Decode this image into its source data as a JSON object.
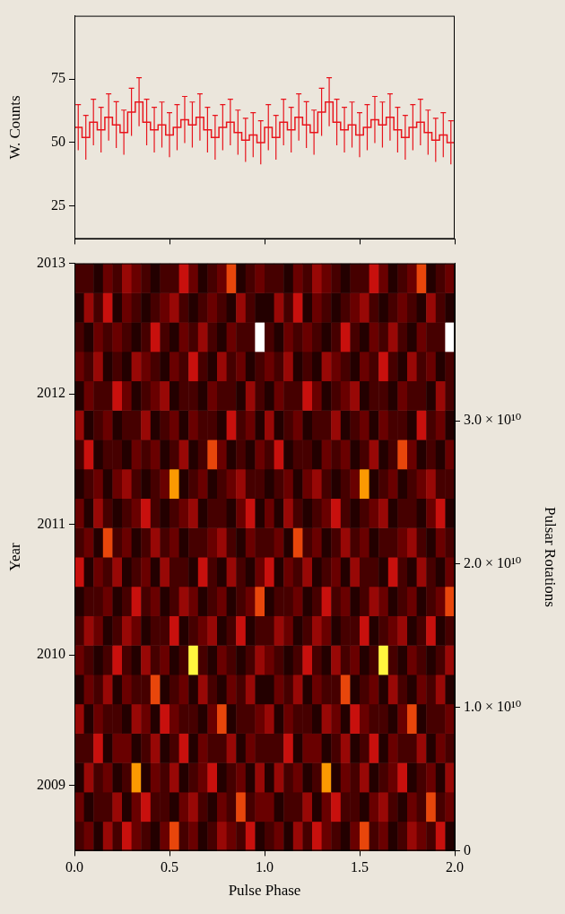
{
  "chart_data": [
    {
      "type": "histogram",
      "y_label": "W. Counts",
      "color": "#e8141c",
      "tick_labels": "y",
      "bins": [
        0,
        0.04,
        0.08,
        0.12,
        0.16,
        0.2,
        0.24,
        0.28,
        0.32,
        0.36,
        0.4,
        0.44,
        0.48,
        0.52,
        0.56,
        0.6,
        0.64,
        0.68,
        0.72,
        0.76,
        0.8,
        0.84,
        0.88,
        0.92,
        0.96,
        1,
        1.04,
        1.08,
        1.12,
        1.16,
        1.2,
        1.24,
        1.28,
        1.32,
        1.36,
        1.4,
        1.44,
        1.48,
        1.52,
        1.56,
        1.6,
        1.64,
        1.68,
        1.72,
        1.76,
        1.8,
        1.84,
        1.88,
        1.92,
        1.96,
        2
      ],
      "values": [
        56,
        52,
        58,
        55,
        60,
        57,
        54,
        62,
        66,
        58,
        55,
        57,
        53,
        56,
        59,
        57,
        60,
        55,
        52,
        56,
        58,
        54,
        51,
        53,
        50,
        56,
        52,
        58,
        55,
        60,
        57,
        54,
        62,
        66,
        58,
        55,
        57,
        53,
        56,
        59,
        57,
        60,
        55,
        52,
        56,
        58,
        54,
        51,
        53,
        50
      ],
      "errors": [
        9.0,
        8.7,
        9.1,
        8.9,
        9.2,
        9.1,
        8.8,
        9.4,
        9.6,
        9.1,
        8.9,
        9.0,
        8.8,
        9.0,
        9.2,
        9.0,
        9.2,
        8.9,
        8.7,
        9.0,
        9.1,
        8.8,
        8.6,
        8.8,
        8.6,
        9.0,
        8.7,
        9.1,
        8.9,
        9.2,
        9.1,
        8.8,
        9.4,
        9.6,
        9.1,
        8.9,
        9.0,
        8.8,
        9.0,
        9.2,
        9.0,
        9.2,
        8.9,
        8.7,
        9.0,
        9.1,
        8.8,
        8.6,
        8.8,
        8.6
      ],
      "xlim": [
        0,
        2
      ],
      "xticks": [
        {
          "value": 0,
          "label": "0.0"
        },
        0.5,
        {
          "value": 1,
          "label": "1.0"
        },
        1.5,
        {
          "value": 2,
          "label": "2.0"
        }
      ],
      "ylim": [
        12,
        100
      ],
      "yticks": [
        25,
        50,
        75
      ]
    },
    {
      "type": "heatmap",
      "x_label": "Pulse Phase",
      "y_label": "Year",
      "y2_label": "Pulsar Rotations",
      "xlim": [
        0,
        2
      ],
      "xticks": [
        {
          "value": 0,
          "label": "0.0"
        },
        0.5,
        {
          "value": 1,
          "label": "1.0"
        },
        1.5,
        {
          "value": 2,
          "label": "2.0"
        }
      ],
      "ylim": [
        2008.5,
        2013
      ],
      "yticks": [
        2009,
        2010,
        2011,
        2012,
        2013
      ],
      "y2lim": [
        0,
        41000000000
      ],
      "y2ticks": [
        0,
        {
          "value": 10000000000,
          "label": "1.0 × 10¹⁰"
        },
        {
          "value": 20000000000,
          "label": "2.0 × 10¹⁰"
        },
        {
          "value": 30000000000,
          "label": "3.0 × 10¹⁰"
        }
      ],
      "zlim": [
        0,
        9
      ],
      "z": [
        [
          2,
          3,
          1,
          4,
          2,
          5,
          3,
          2,
          1,
          3,
          6,
          2,
          3,
          1,
          2,
          4,
          3,
          2,
          5,
          1,
          2,
          3,
          1,
          4,
          2,
          5,
          3,
          2,
          1,
          3,
          6,
          2,
          3,
          1,
          2,
          4,
          3,
          2,
          5,
          1
        ],
        [
          3,
          1,
          2,
          2,
          4,
          1,
          3,
          5,
          2,
          2,
          1,
          3,
          4,
          2,
          1,
          3,
          2,
          6,
          2,
          3,
          3,
          1,
          2,
          2,
          4,
          1,
          3,
          5,
          2,
          2,
          1,
          3,
          4,
          2,
          1,
          3,
          2,
          6,
          2,
          3
        ],
        [
          1,
          4,
          2,
          3,
          1,
          2,
          7,
          1,
          3,
          2,
          4,
          1,
          2,
          3,
          5,
          1,
          2,
          3,
          1,
          4,
          1,
          4,
          2,
          3,
          1,
          2,
          7,
          1,
          3,
          2,
          4,
          1,
          2,
          3,
          5,
          1,
          2,
          3,
          1,
          4
        ],
        [
          2,
          2,
          5,
          1,
          3,
          3,
          1,
          2,
          4,
          1,
          2,
          5,
          1,
          3,
          2,
          2,
          4,
          1,
          3,
          2,
          2,
          2,
          5,
          1,
          3,
          3,
          1,
          2,
          4,
          1,
          2,
          5,
          1,
          3,
          2,
          2,
          4,
          1,
          3,
          2
        ],
        [
          4,
          1,
          3,
          2,
          2,
          1,
          4,
          3,
          1,
          5,
          3,
          2,
          2,
          1,
          3,
          6,
          1,
          2,
          2,
          3,
          4,
          1,
          3,
          2,
          2,
          1,
          4,
          3,
          1,
          5,
          3,
          2,
          2,
          1,
          3,
          6,
          1,
          2,
          2,
          3
        ],
        [
          1,
          3,
          2,
          4,
          1,
          3,
          2,
          2,
          6,
          1,
          2,
          3,
          1,
          4,
          2,
          1,
          3,
          2,
          4,
          1,
          1,
          3,
          2,
          4,
          1,
          3,
          2,
          2,
          6,
          1,
          2,
          3,
          1,
          4,
          2,
          1,
          3,
          2,
          4,
          1
        ],
        [
          3,
          2,
          1,
          2,
          5,
          2,
          1,
          4,
          2,
          3,
          1,
          2,
          8,
          2,
          1,
          3,
          2,
          1,
          2,
          4,
          3,
          2,
          1,
          2,
          5,
          2,
          1,
          4,
          2,
          3,
          1,
          2,
          8,
          2,
          1,
          3,
          2,
          1,
          2,
          4
        ],
        [
          2,
          4,
          3,
          1,
          2,
          4,
          3,
          1,
          2,
          2,
          5,
          1,
          2,
          3,
          4,
          1,
          2,
          5,
          1,
          2,
          2,
          4,
          3,
          1,
          2,
          4,
          3,
          1,
          2,
          2,
          5,
          1,
          2,
          3,
          4,
          1,
          2,
          5,
          1,
          2
        ],
        [
          1,
          2,
          2,
          3,
          1,
          2,
          5,
          2,
          3,
          1,
          2,
          4,
          3,
          1,
          2,
          3,
          1,
          2,
          3,
          6,
          1,
          2,
          2,
          3,
          1,
          2,
          5,
          2,
          3,
          1,
          2,
          4,
          3,
          1,
          2,
          3,
          1,
          2,
          3,
          6
        ],
        [
          5,
          1,
          3,
          2,
          4,
          1,
          2,
          3,
          1,
          4,
          2,
          2,
          1,
          5,
          2,
          1,
          4,
          2,
          1,
          3,
          5,
          1,
          3,
          2,
          4,
          1,
          2,
          3,
          1,
          4,
          2,
          2,
          1,
          5,
          2,
          1,
          4,
          2,
          1,
          3
        ],
        [
          2,
          3,
          1,
          6,
          2,
          3,
          1,
          2,
          4,
          2,
          3,
          1,
          2,
          2,
          3,
          4,
          2,
          1,
          3,
          2,
          2,
          3,
          1,
          6,
          2,
          3,
          1,
          2,
          4,
          2,
          3,
          1,
          2,
          2,
          3,
          4,
          2,
          1,
          3,
          2
        ],
        [
          3,
          1,
          4,
          2,
          1,
          2,
          3,
          5,
          2,
          1,
          2,
          3,
          4,
          1,
          2,
          2,
          1,
          3,
          5,
          1,
          3,
          1,
          4,
          2,
          1,
          2,
          3,
          5,
          2,
          1,
          2,
          3,
          4,
          1,
          2,
          2,
          1,
          3,
          5,
          1
        ],
        [
          1,
          2,
          3,
          1,
          3,
          4,
          2,
          1,
          2,
          3,
          7,
          1,
          2,
          3,
          1,
          2,
          3,
          4,
          2,
          2,
          1,
          2,
          3,
          1,
          3,
          4,
          2,
          1,
          2,
          3,
          7,
          1,
          2,
          3,
          1,
          2,
          3,
          4,
          2,
          2
        ],
        [
          2,
          5,
          1,
          2,
          2,
          1,
          3,
          2,
          3,
          1,
          2,
          4,
          1,
          2,
          6,
          3,
          1,
          2,
          1,
          3,
          2,
          5,
          1,
          2,
          2,
          1,
          3,
          2,
          3,
          1,
          2,
          4,
          1,
          2,
          6,
          3,
          1,
          2,
          1,
          3
        ],
        [
          4,
          1,
          2,
          3,
          1,
          2,
          2,
          4,
          1,
          2,
          3,
          1,
          3,
          2,
          2,
          1,
          5,
          2,
          3,
          1,
          4,
          1,
          2,
          3,
          1,
          2,
          2,
          4,
          1,
          2,
          3,
          1,
          3,
          2,
          2,
          1,
          5,
          2,
          3,
          1
        ],
        [
          1,
          3,
          2,
          2,
          5,
          3,
          1,
          2,
          3,
          4,
          1,
          2,
          2,
          1,
          3,
          2,
          2,
          1,
          4,
          2,
          1,
          3,
          2,
          2,
          5,
          3,
          1,
          2,
          3,
          4,
          1,
          2,
          2,
          1,
          3,
          2,
          2,
          1,
          4,
          2
        ],
        [
          3,
          2,
          4,
          1,
          2,
          1,
          4,
          3,
          2,
          1,
          3,
          2,
          5,
          2,
          1,
          4,
          2,
          3,
          1,
          2,
          3,
          2,
          4,
          1,
          2,
          1,
          4,
          3,
          2,
          1,
          3,
          2,
          5,
          2,
          1,
          4,
          2,
          3,
          1,
          2
        ],
        [
          2,
          1,
          3,
          2,
          3,
          2,
          1,
          2,
          5,
          2,
          1,
          3,
          2,
          4,
          2,
          1,
          3,
          2,
          2,
          9,
          2,
          1,
          3,
          2,
          3,
          2,
          1,
          2,
          5,
          2,
          1,
          3,
          2,
          4,
          2,
          1,
          3,
          2,
          2,
          9
        ],
        [
          1,
          4,
          2,
          5,
          1,
          3,
          2,
          1,
          2,
          3,
          4,
          2,
          1,
          2,
          3,
          2,
          1,
          4,
          2,
          1,
          1,
          4,
          2,
          5,
          1,
          3,
          2,
          1,
          2,
          3,
          4,
          2,
          1,
          2,
          3,
          2,
          1,
          4,
          2,
          1
        ],
        [
          2,
          2,
          1,
          3,
          2,
          4,
          3,
          2,
          1,
          2,
          2,
          5,
          3,
          1,
          2,
          3,
          6,
          1,
          2,
          3,
          2,
          2,
          1,
          3,
          2,
          4,
          3,
          2,
          1,
          2,
          2,
          5,
          3,
          1,
          2,
          3,
          6,
          1,
          2,
          3
        ]
      ]
    }
  ]
}
